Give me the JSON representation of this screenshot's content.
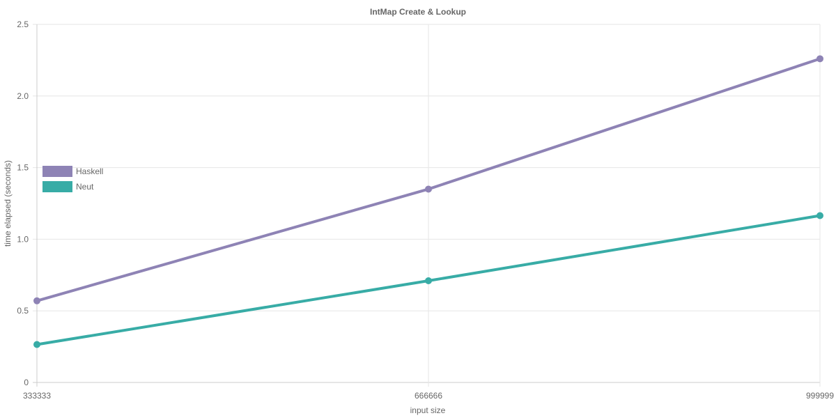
{
  "chart_data": {
    "type": "line",
    "title": "IntMap Create & Lookup",
    "xlabel": "input size",
    "ylabel": "time elapsed (seconds)",
    "categories": [
      "333333",
      "666666",
      "999999"
    ],
    "ylim": [
      0,
      2.5
    ],
    "yticks": [
      "0",
      "0.5",
      "1.0",
      "1.5",
      "2.0",
      "2.5"
    ],
    "grid": true,
    "legend_position": "left",
    "series": [
      {
        "name": "Haskell",
        "color": "#8e83b5",
        "values": [
          0.57,
          1.35,
          2.26
        ]
      },
      {
        "name": "Neut",
        "color": "#38aca6",
        "values": [
          0.265,
          0.71,
          1.165
        ]
      }
    ]
  }
}
